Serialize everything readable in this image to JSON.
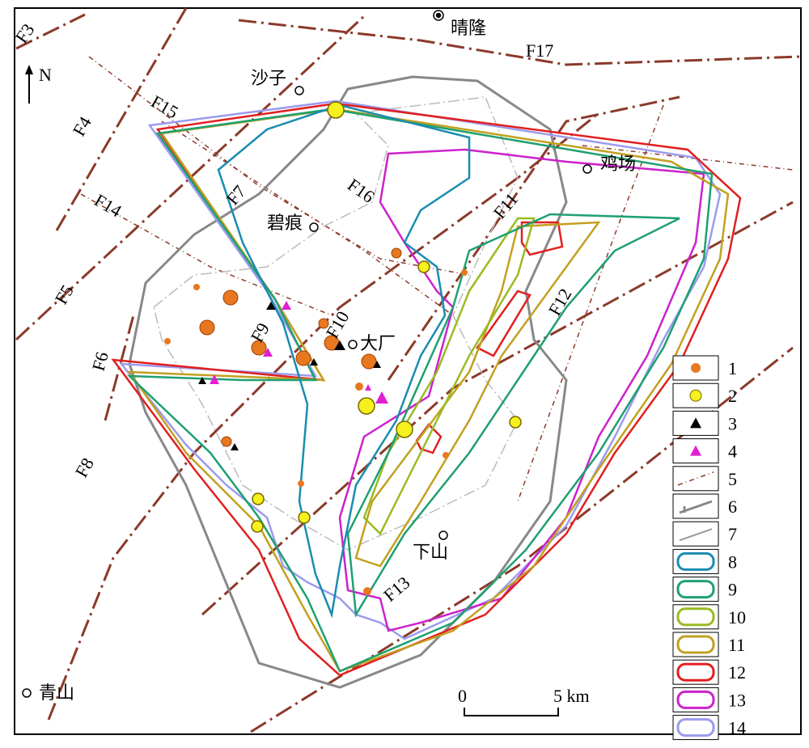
{
  "places": [
    "晴隆",
    "沙子",
    "鸡场",
    "碧痕",
    "大厂",
    "下山",
    "青山"
  ],
  "faults": [
    "F3",
    "F4",
    "F5",
    "F6",
    "F7",
    "F8",
    "F9",
    "F10",
    "F11",
    "F12",
    "F13",
    "F14",
    "F15",
    "F16",
    "F17"
  ],
  "north": "N",
  "scale": {
    "start": "0",
    "end": "5 km"
  },
  "legend": [
    "1",
    "2",
    "3",
    "4",
    "5",
    "6",
    "7",
    "8",
    "9",
    "10",
    "11",
    "12",
    "13",
    "14"
  ]
}
